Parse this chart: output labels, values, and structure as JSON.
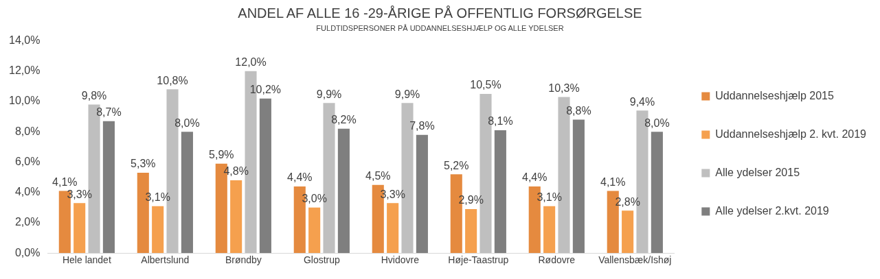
{
  "chart_data": {
    "type": "bar",
    "title": "ANDEL AF ALLE 16 -29-ÅRIGE PÅ OFFENTLIG FORSØRGELSE",
    "subtitle": "FULDTIDSPERSONER PÅ UDDANNELSESHJÆLP OG ALLE YDELSER",
    "categories": [
      "Hele landet",
      "Albertslund",
      "Brøndby",
      "Glostrup",
      "Hvidovre",
      "Høje-Taastrup",
      "Rødovre",
      "Vallensbæk/Ishøj"
    ],
    "series": [
      {
        "name": "Uddannelseshjælp 2015",
        "color": "#e58a3f",
        "values": [
          4.1,
          5.3,
          5.9,
          4.4,
          4.5,
          5.2,
          4.4,
          4.1
        ],
        "value_labels": [
          "4,1%",
          "5,3%",
          "5,9%",
          "4,4%",
          "4,5%",
          "5,2%",
          "4,4%",
          "4,1%"
        ]
      },
      {
        "name": "Uddannelseshjælp 2. kvt. 2019",
        "color": "#f5a04e",
        "values": [
          3.3,
          3.1,
          4.8,
          3.0,
          3.3,
          2.9,
          3.1,
          2.8
        ],
        "value_labels": [
          "3,3%",
          "3,1%",
          "4,8%",
          "3,0%",
          "3,3%",
          "2,9%",
          "3,1%",
          "2,8%"
        ]
      },
      {
        "name": "Alle ydelser 2015",
        "color": "#bfbfbf",
        "values": [
          9.8,
          10.8,
          12.0,
          9.9,
          9.9,
          10.5,
          10.3,
          9.4
        ],
        "value_labels": [
          "9,8%",
          "10,8%",
          "12,0%",
          "9,9%",
          "9,9%",
          "10,5%",
          "10,3%",
          "9,4%"
        ]
      },
      {
        "name": "Alle ydelser 2.kvt. 2019",
        "color": "#7f7f7f",
        "values": [
          8.7,
          8.0,
          10.2,
          8.2,
          7.8,
          8.1,
          8.8,
          8.0
        ],
        "value_labels": [
          "8,7%",
          "8,0%",
          "10,2%",
          "8,2%",
          "7,8%",
          "8,1%",
          "8,8%",
          "8,0%"
        ]
      }
    ],
    "ylim": [
      0,
      14
    ],
    "yticks": [
      {
        "value": 0,
        "label": "0,0%"
      },
      {
        "value": 2,
        "label": "2,0%"
      },
      {
        "value": 4,
        "label": "4,0%"
      },
      {
        "value": 6,
        "label": "6,0%"
      },
      {
        "value": 8,
        "label": "8,0%"
      },
      {
        "value": 10,
        "label": "10,0%"
      },
      {
        "value": 12,
        "label": "12,0%"
      },
      {
        "value": 14,
        "label": "14,0%"
      }
    ],
    "grid": false,
    "legend": "right"
  }
}
